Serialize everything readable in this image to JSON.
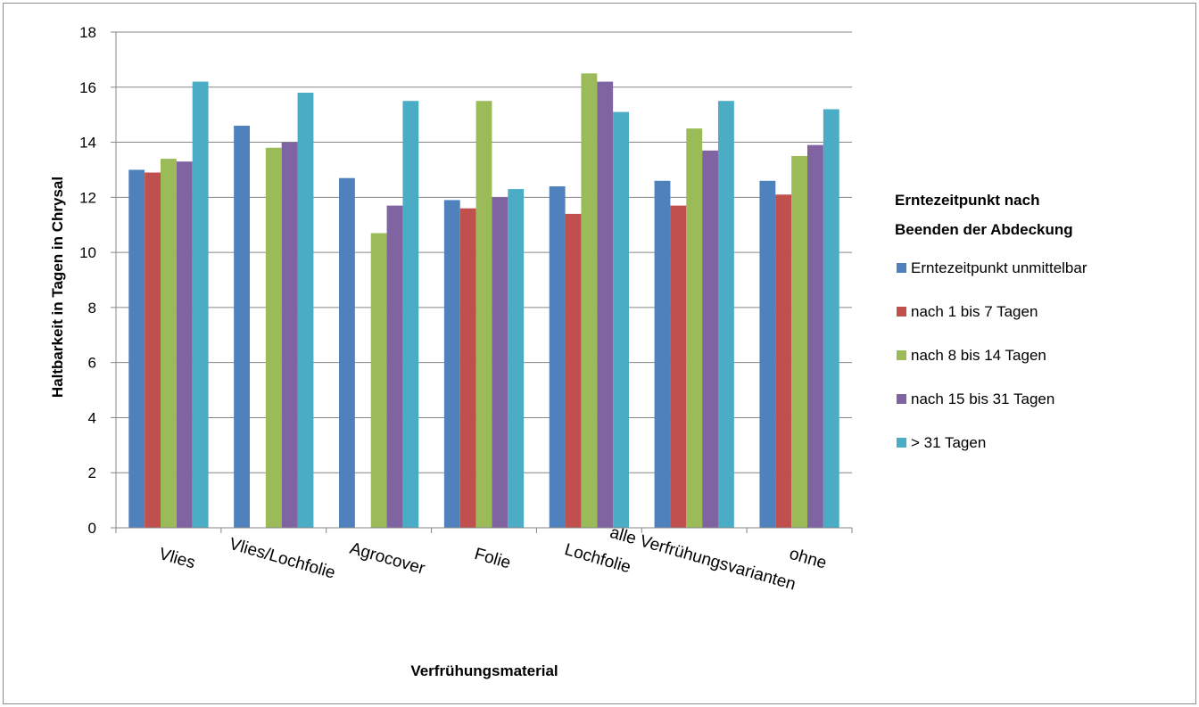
{
  "chart_data": {
    "type": "bar",
    "title": "",
    "xlabel": "Verfrühungsmaterial",
    "ylabel": "Haltbarkeit in Tagen in Chrysal",
    "ylim": [
      0,
      18
    ],
    "yticks": [
      0,
      2,
      4,
      6,
      8,
      10,
      12,
      14,
      16,
      18
    ],
    "grid": true,
    "legend_position": "right",
    "legend_title": "Erntezeitpunkt nach Beenden der Abdeckung",
    "categories": [
      "Vlies",
      "Vlies/Lochfolie",
      "Agrocover",
      "Folie",
      "Lochfolie",
      "alle Verfrühungsvarianten",
      "ohne"
    ],
    "series": [
      {
        "name": "Erntezeitpunkt unmittelbar",
        "color": "#4F81BD",
        "values": [
          13.0,
          14.6,
          12.7,
          11.9,
          12.4,
          12.6,
          12.6
        ]
      },
      {
        "name": "nach 1 bis 7 Tagen",
        "color": "#C0504D",
        "values": [
          12.9,
          null,
          null,
          11.6,
          11.4,
          11.7,
          12.1
        ]
      },
      {
        "name": "nach 8 bis 14 Tagen",
        "color": "#9BBB59",
        "values": [
          13.4,
          13.8,
          10.7,
          15.5,
          16.5,
          14.5,
          13.5
        ]
      },
      {
        "name": "nach 15 bis 31 Tagen",
        "color": "#8064A2",
        "values": [
          13.3,
          14.0,
          11.7,
          12.0,
          16.2,
          13.7,
          13.9
        ]
      },
      {
        "name": "> 31 Tagen",
        "color": "#4BACC6",
        "values": [
          16.2,
          15.8,
          15.5,
          12.3,
          15.1,
          15.5,
          15.2
        ]
      }
    ]
  }
}
